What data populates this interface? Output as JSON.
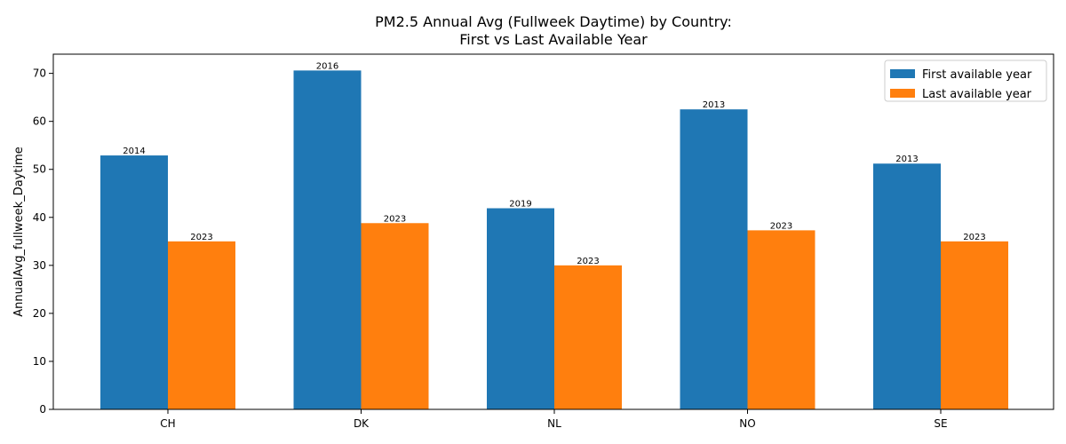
{
  "chart_data": {
    "type": "bar",
    "title_line1": "PM2.5 Annual Avg (Fullweek Daytime) by Country:",
    "title_line2": "First vs Last Available Year",
    "xlabel": "",
    "ylabel": "AnnualAvg_fullweek_Daytime",
    "ylim": [
      0,
      74
    ],
    "yticks": [
      0,
      10,
      20,
      30,
      40,
      50,
      60,
      70
    ],
    "categories": [
      "CH",
      "DK",
      "NL",
      "NO",
      "SE"
    ],
    "series": [
      {
        "name": "First available year",
        "color": "#1f77b4",
        "values": [
          52.9,
          70.6,
          41.9,
          62.5,
          51.2
        ],
        "labels": [
          "2014",
          "2016",
          "2019",
          "2013",
          "2013"
        ]
      },
      {
        "name": "Last available year",
        "color": "#ff7f0e",
        "values": [
          35.0,
          38.8,
          30.0,
          37.3,
          35.0
        ],
        "labels": [
          "2023",
          "2023",
          "2023",
          "2023",
          "2023"
        ]
      }
    ],
    "legend_position": "top-right",
    "grid": false
  }
}
